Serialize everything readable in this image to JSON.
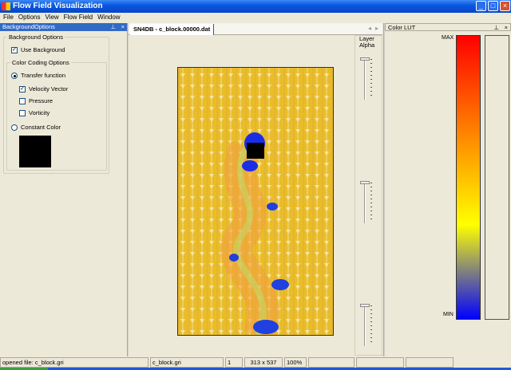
{
  "window": {
    "title": "Flow Field Visualization"
  },
  "menu": [
    "File",
    "Options",
    "View",
    "Flow Field",
    "Window"
  ],
  "left_panel": {
    "title": "BackgroundOptions",
    "group_background": "Background Options",
    "use_background": {
      "label": "Use Background",
      "checked": true
    },
    "group_color": "Color Coding Options",
    "transfer_function": {
      "label": "Transfer function",
      "selected": true
    },
    "velocity_vector": {
      "label": "Velocity Vector",
      "checked": true
    },
    "pressure": {
      "label": "Pressure",
      "checked": false
    },
    "vorticity": {
      "label": "Vorticity",
      "checked": false
    },
    "constant_color": {
      "label": "Constant Color",
      "selected": false
    },
    "swatch_color": "#000000"
  },
  "document": {
    "tab": "SN4DB - c_block.00000.dat"
  },
  "layer_alpha": {
    "label": "Layer Alpha"
  },
  "color_lut": {
    "title": "Color LUT",
    "max": "MAX",
    "min": "MIN",
    "gradient": [
      "#ff0000",
      "#ff8000",
      "#ffff00",
      "#0000ff"
    ]
  },
  "status": {
    "message": "opened file: c_block.gri",
    "file": "c_block.gri",
    "index": "1",
    "size": "313 x 537",
    "zoom": "100%"
  }
}
